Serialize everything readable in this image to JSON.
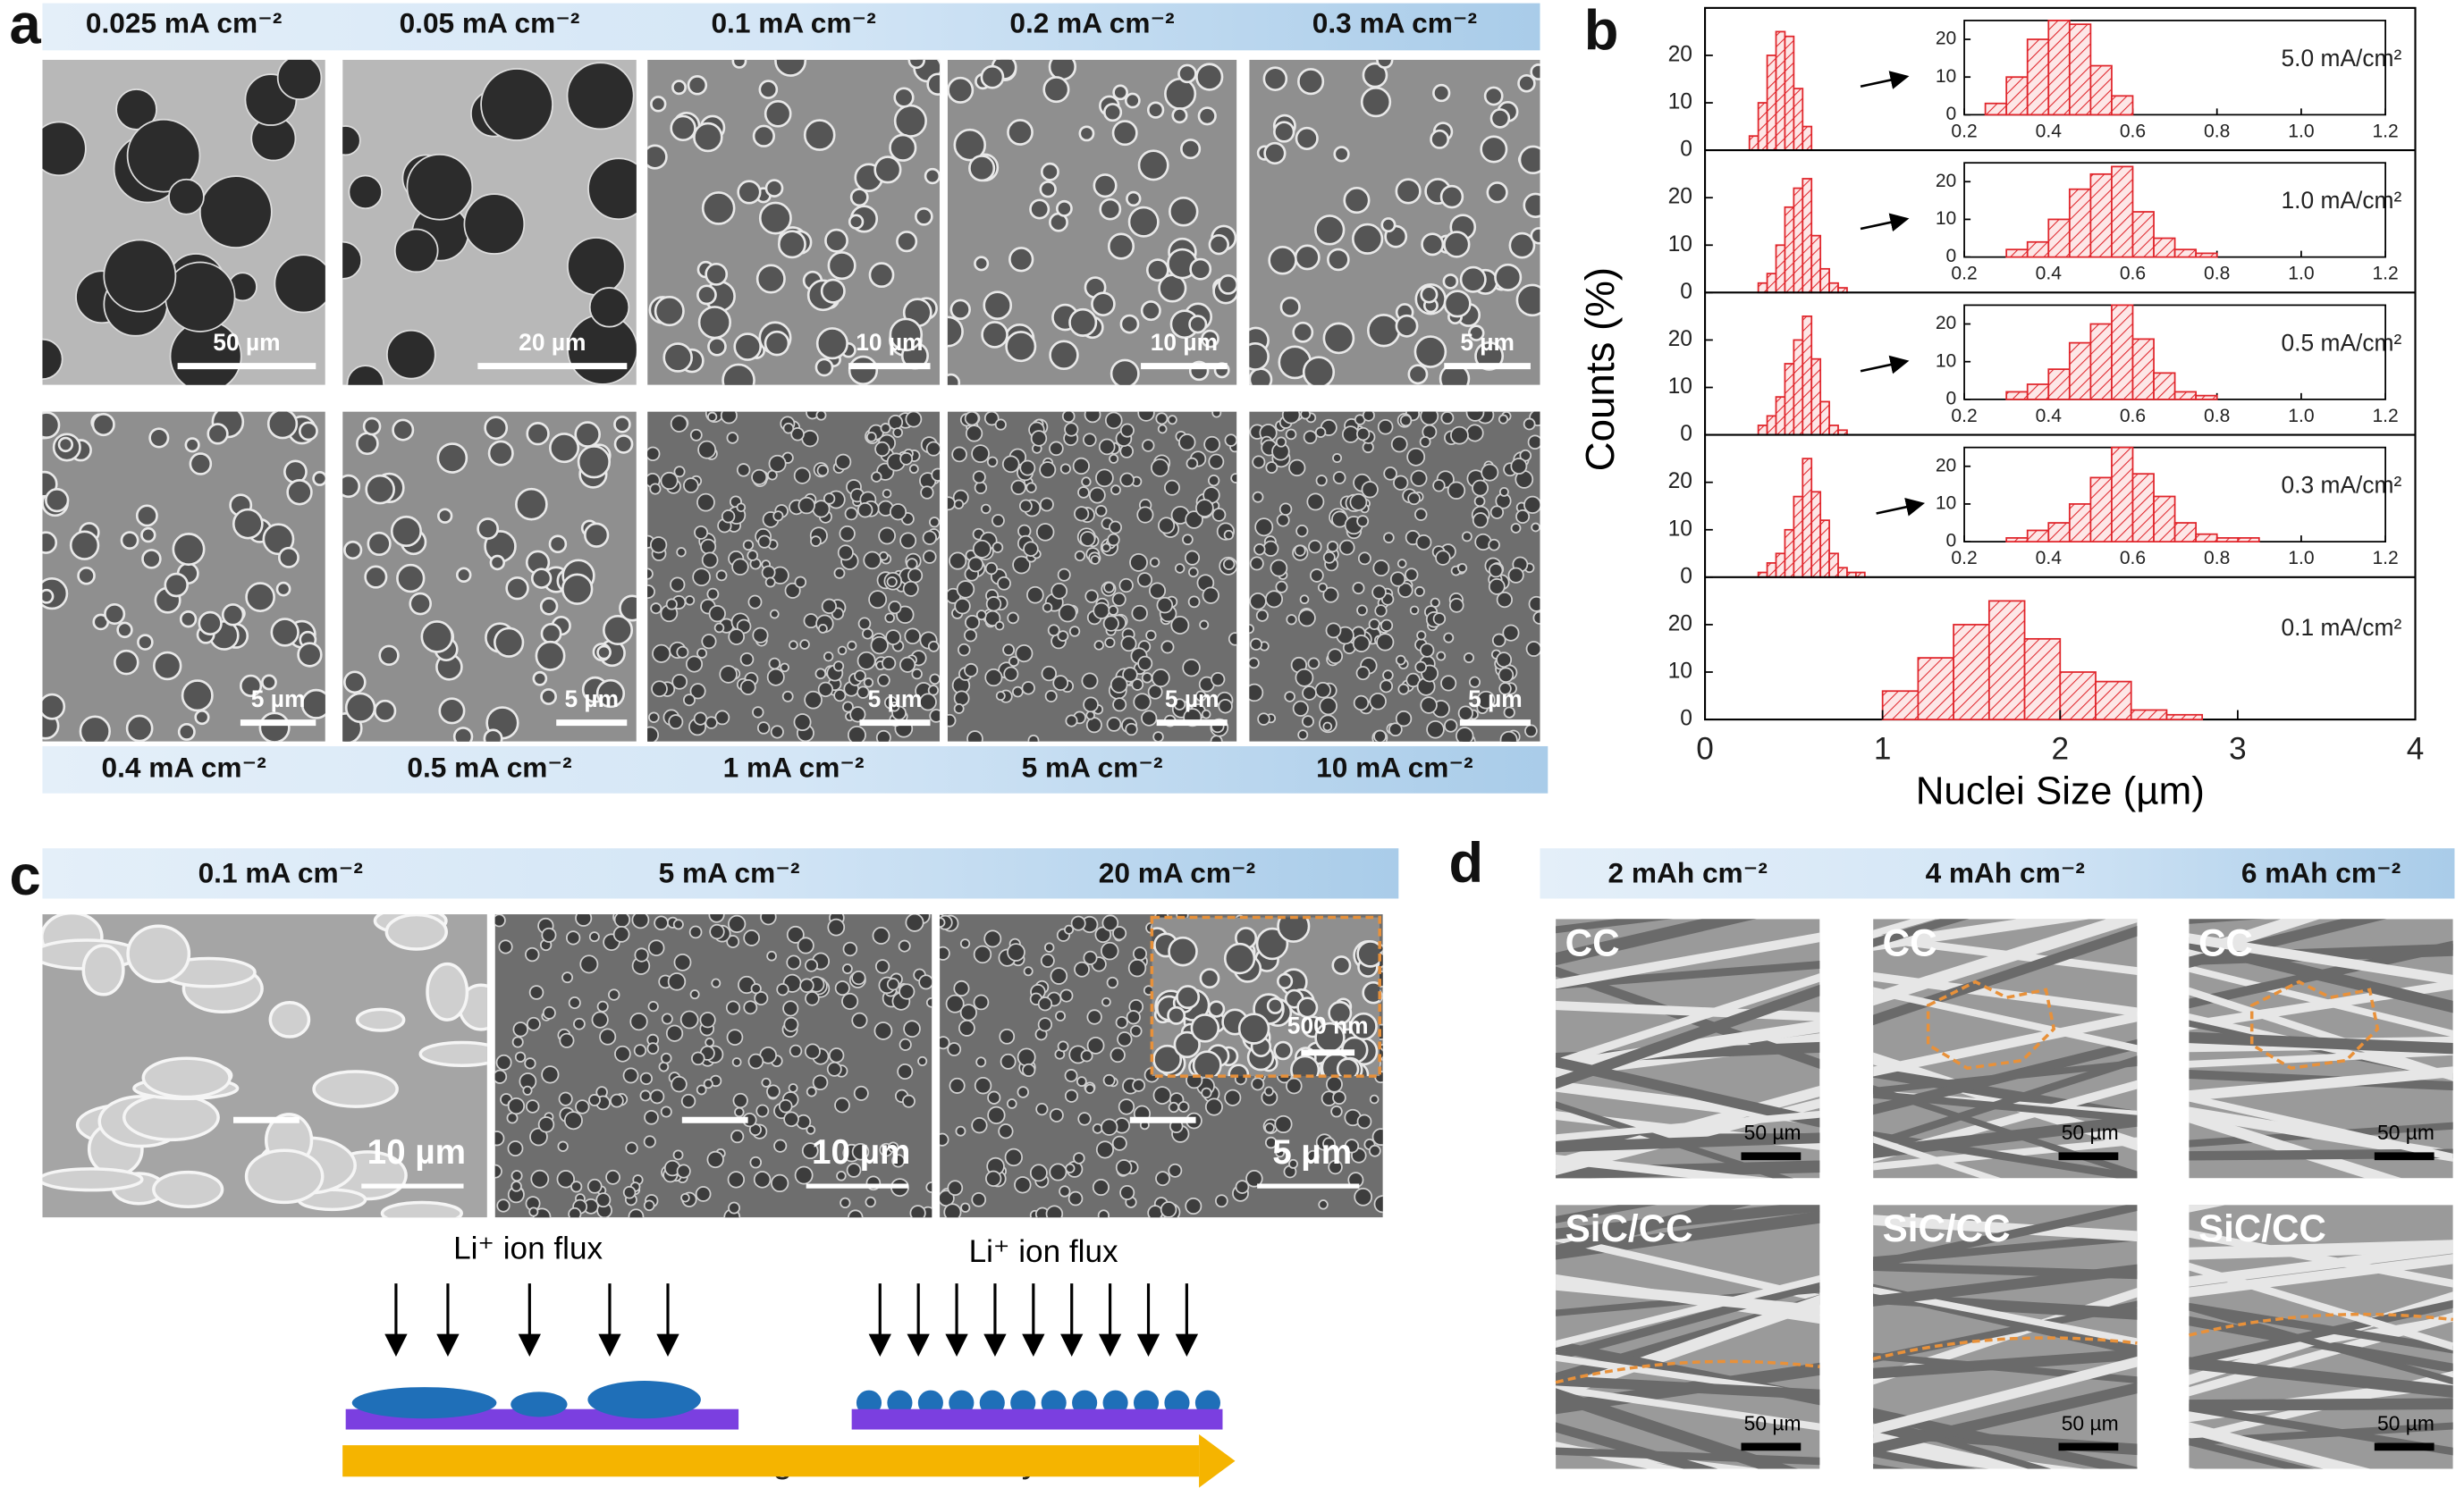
{
  "panel_labels": [
    "a",
    "b",
    "c",
    "d"
  ],
  "panel_a": {
    "top_labels": [
      "0.025 mA cm⁻²",
      "0.05 mA cm⁻²",
      "0.1 mA cm⁻²",
      "0.2 mA cm⁻²",
      "0.3 mA cm⁻²"
    ],
    "bottom_labels": [
      "0.4 mA cm⁻²",
      "0.5 mA cm⁻²",
      "1 mA cm⁻²",
      "5 mA cm⁻²",
      "10 mA cm⁻²"
    ],
    "scale_bars": [
      "50 µm",
      "20 µm",
      "10 µm",
      "10 µm",
      "5 µm",
      "5 µm",
      "5 µm",
      "5 µm",
      "5 µm",
      "5 µm"
    ]
  },
  "panel_b": {
    "y_label": "Counts (%)",
    "x_label": "Nuclei Size (µm)",
    "color": "#e0252b",
    "xlim": [
      0,
      4
    ],
    "xticks": [
      0,
      1,
      2,
      3,
      4
    ],
    "ylim": [
      0,
      30
    ],
    "yticks": [
      0,
      10,
      20
    ],
    "inset_xlim": [
      0.2,
      1.2
    ],
    "inset_xticks": [
      0.2,
      0.4,
      0.6,
      0.8,
      {
        "value": 1,
        "label": "1.0"
      },
      1.2
    ],
    "inset_ylim": [
      0,
      25
    ],
    "inset_yticks": [
      0,
      10,
      20
    ],
    "histograms": [
      {
        "label": "5.0 mA/cm²",
        "bins": [
          0.25,
          0.3,
          0.35,
          0.4,
          0.45,
          0.5,
          0.55,
          0.6
        ],
        "counts": [
          3,
          10,
          20,
          25,
          24,
          13,
          5
        ]
      },
      {
        "label": "1.0 mA/cm²",
        "bins": [
          0.3,
          0.35,
          0.4,
          0.45,
          0.5,
          0.55,
          0.6,
          0.65,
          0.7,
          0.75,
          0.8
        ],
        "counts": [
          2,
          4,
          10,
          18,
          22,
          24,
          12,
          5,
          2,
          1
        ]
      },
      {
        "label": "0.5 mA/cm²",
        "bins": [
          0.3,
          0.35,
          0.4,
          0.45,
          0.5,
          0.55,
          0.6,
          0.65,
          0.7,
          0.75,
          0.8
        ],
        "counts": [
          2,
          4,
          8,
          15,
          20,
          25,
          16,
          7,
          2,
          1
        ]
      },
      {
        "label": "0.3 mA/cm²",
        "bins": [
          0.3,
          0.35,
          0.4,
          0.45,
          0.5,
          0.55,
          0.6,
          0.65,
          0.7,
          0.75,
          0.8,
          0.85,
          0.9
        ],
        "counts": [
          1,
          3,
          5,
          10,
          17,
          25,
          18,
          12,
          5,
          2,
          1,
          1
        ]
      },
      {
        "label": "0.1 mA/cm²",
        "bins": [
          1.0,
          1.2,
          1.4,
          1.6,
          1.8,
          2.0,
          2.2,
          2.4,
          2.6,
          2.8
        ],
        "counts": [
          6,
          13,
          20,
          25,
          17,
          10,
          8,
          2,
          1
        ]
      }
    ]
  },
  "panel_c": {
    "labels": [
      "0.1 mA cm⁻²",
      "5 mA cm⁻²",
      "20 mA cm⁻²"
    ],
    "scale_bars": [
      "10 µm",
      "10 µm",
      "5 µm"
    ],
    "inset_scale_bar": "500 nm",
    "flux_labels": [
      "Li⁺ ion flux",
      "Li⁺ ion flux"
    ],
    "arrow_label": "Increasing current density"
  },
  "panel_d": {
    "labels": [
      "2 mAh cm⁻²",
      "4 mAh cm⁻²",
      "6 mAh cm⁻²"
    ],
    "images": [
      {
        "label": "CC",
        "scale_bar": "50 µm"
      },
      {
        "label": "CC",
        "scale_bar": "50 µm"
      },
      {
        "label": "CC",
        "scale_bar": "50 µm"
      },
      {
        "label": "SiC/CC",
        "scale_bar": "50 µm"
      },
      {
        "label": "SiC/CC",
        "scale_bar": "50 µm"
      },
      {
        "label": "SiC/CC",
        "scale_bar": "50 µm"
      }
    ]
  }
}
